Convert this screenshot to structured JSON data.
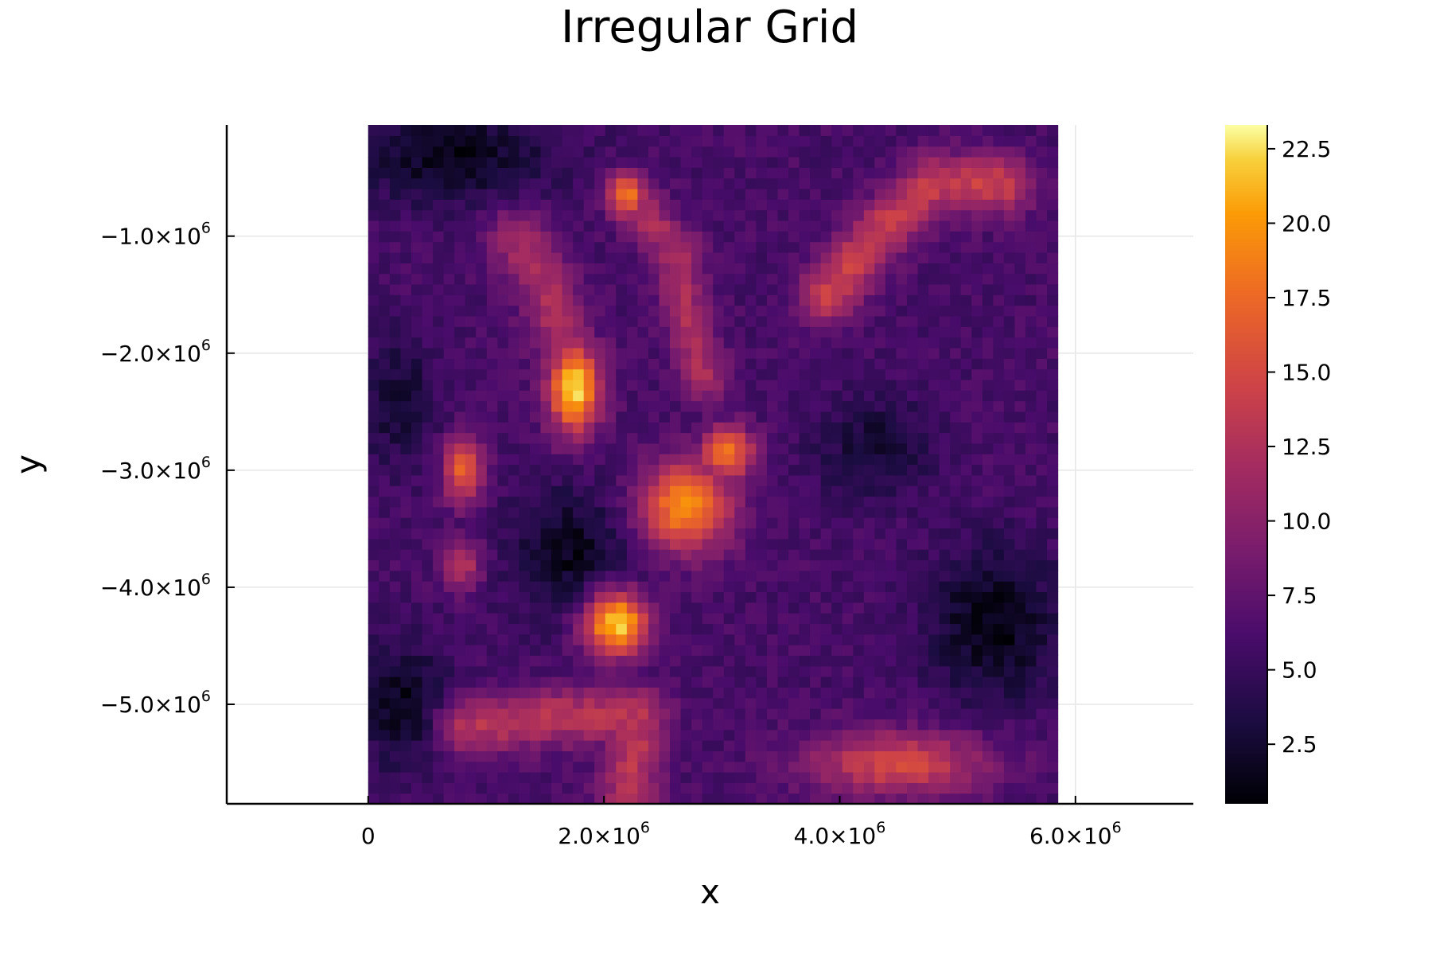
{
  "chart_data": {
    "type": "heatmap",
    "title": "Irregular Grid",
    "xlabel": "x",
    "ylabel": "y",
    "xlim": [
      -1200000,
      7000000
    ],
    "ylim": [
      -5850000,
      -50000
    ],
    "data_extent": {
      "x": [
        0,
        5850000
      ],
      "y": [
        -5850000,
        -50000
      ]
    },
    "grid": true,
    "colormap": "inferno",
    "colorbar": {
      "range": [
        0.5,
        23.3
      ],
      "ticks": [
        2.5,
        5.0,
        7.5,
        10.0,
        12.5,
        15.0,
        17.5,
        20.0,
        22.5
      ],
      "tick_labels": [
        "2.5",
        "5.0",
        "7.5",
        "10.0",
        "12.5",
        "15.0",
        "17.5",
        "20.0",
        "22.5"
      ]
    },
    "x_ticks": [
      {
        "value": 0,
        "base": "0",
        "exp": ""
      },
      {
        "value": 2000000,
        "base": "2.0×10",
        "exp": "6"
      },
      {
        "value": 4000000,
        "base": "4.0×10",
        "exp": "6"
      },
      {
        "value": 6000000,
        "base": "6.0×10",
        "exp": "6"
      }
    ],
    "y_ticks": [
      {
        "value": -1000000,
        "base": "−1.0×10",
        "exp": "6"
      },
      {
        "value": -2000000,
        "base": "−2.0×10",
        "exp": "6"
      },
      {
        "value": -3000000,
        "base": "−3.0×10",
        "exp": "6"
      },
      {
        "value": -4000000,
        "base": "−4.0×10",
        "exp": "6"
      },
      {
        "value": -5000000,
        "base": "−5.0×10",
        "exp": "6"
      }
    ],
    "grid_cells": {
      "nx": 64,
      "ny": 64
    },
    "background_level": 6.0,
    "features": [
      {
        "name": "ridge-upper-left",
        "points": [
          [
            1250000,
            -1000000
          ],
          [
            1500000,
            -1400000
          ],
          [
            1650000,
            -1900000
          ],
          [
            1750000,
            -2300000
          ]
        ],
        "value": 12,
        "width": 250000
      },
      {
        "name": "hotspot-left-center",
        "x": 1750000,
        "y": -2300000,
        "value": 22.5,
        "rx": 200000,
        "ry": 350000
      },
      {
        "name": "hotspot-top-center",
        "x": 2200000,
        "y": -650000,
        "value": 19,
        "rx": 150000,
        "ry": 180000
      },
      {
        "name": "ridge-top-center",
        "points": [
          [
            2200000,
            -650000
          ],
          [
            2600000,
            -1100000
          ],
          [
            2700000,
            -1700000
          ],
          [
            2850000,
            -2200000
          ]
        ],
        "value": 12,
        "width": 200000
      },
      {
        "name": "hotspot-center",
        "x": 2700000,
        "y": -3300000,
        "value": 20,
        "rx": 350000,
        "ry": 350000
      },
      {
        "name": "hotspot-center-right",
        "x": 3050000,
        "y": -2850000,
        "value": 19,
        "rx": 200000,
        "ry": 200000
      },
      {
        "name": "hotspot-lower-center",
        "x": 2100000,
        "y": -4300000,
        "value": 23,
        "rx": 250000,
        "ry": 250000
      },
      {
        "name": "hotspot-left",
        "x": 800000,
        "y": -3000000,
        "value": 17,
        "rx": 150000,
        "ry": 250000
      },
      {
        "name": "ridge-top-right",
        "points": [
          [
            3900000,
            -1500000
          ],
          [
            4300000,
            -1000000
          ],
          [
            4800000,
            -550000
          ],
          [
            5400000,
            -550000
          ]
        ],
        "value": 14,
        "width": 250000
      },
      {
        "name": "ridge-bottom",
        "points": [
          [
            800000,
            -5200000
          ],
          [
            1600000,
            -5100000
          ],
          [
            2300000,
            -5100000
          ],
          [
            2200000,
            -5800000
          ]
        ],
        "value": 13,
        "width": 250000
      },
      {
        "name": "hotspot-bottom-right",
        "x": 4500000,
        "y": -5500000,
        "value": 15,
        "rx": 700000,
        "ry": 250000
      },
      {
        "name": "hotspot-left-lower",
        "x": 800000,
        "y": -3800000,
        "value": 13,
        "rx": 150000,
        "ry": 200000
      },
      {
        "name": "dark-top-left",
        "x": 700000,
        "y": -300000,
        "value": 1.5,
        "rx": 800000,
        "ry": 400000
      },
      {
        "name": "dark-lower-center",
        "x": 1700000,
        "y": -3700000,
        "value": 1.5,
        "rx": 450000,
        "ry": 500000
      },
      {
        "name": "dark-lower-right",
        "x": 5300000,
        "y": -4300000,
        "value": 1.0,
        "rx": 500000,
        "ry": 600000
      },
      {
        "name": "dark-mid-right",
        "x": 4300000,
        "y": -2800000,
        "value": 2.5,
        "rx": 450000,
        "ry": 400000
      },
      {
        "name": "dark-bottom-left",
        "x": 300000,
        "y": -5000000,
        "value": 1.5,
        "rx": 350000,
        "ry": 500000
      },
      {
        "name": "dark-left-center",
        "x": 250000,
        "y": -2400000,
        "value": 2.5,
        "rx": 300000,
        "ry": 500000
      }
    ]
  }
}
